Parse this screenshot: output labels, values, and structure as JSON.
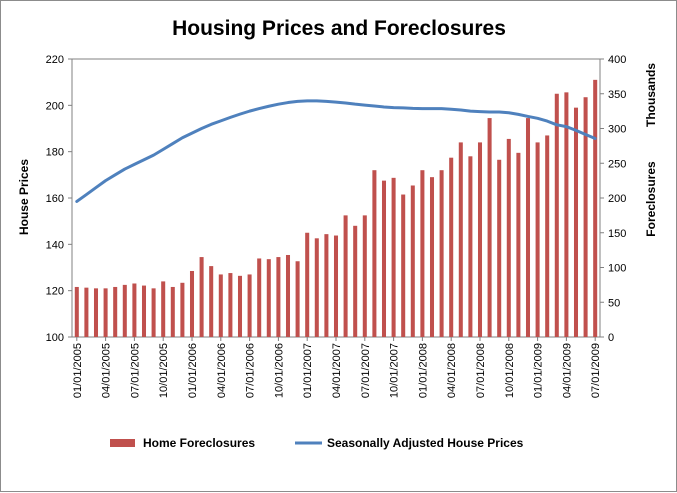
{
  "chart_data": {
    "type": "bar+line",
    "title": "Housing Prices and Foreclosures",
    "ylabel_left": "House Prices",
    "ylabel_right": "Foreclosures",
    "right_unit_label": "Thousands",
    "ylim_left": [
      100,
      220
    ],
    "ylim_right": [
      0,
      400
    ],
    "yticks_left": [
      "100",
      "120",
      "140",
      "160",
      "180",
      "200",
      "220"
    ],
    "yticks_right": [
      "0",
      "50",
      "100",
      "150",
      "200",
      "250",
      "300",
      "350",
      "400"
    ],
    "xtick_labels": [
      "01/01/2005",
      "04/01/2005",
      "07/01/2005",
      "10/01/2005",
      "01/01/2006",
      "04/01/2006",
      "07/01/2006",
      "10/01/2006",
      "01/01/2007",
      "04/01/2007",
      "07/01/2007",
      "10/01/2007",
      "01/01/2008",
      "04/01/2008",
      "07/01/2008",
      "10/01/2008",
      "01/01/2009",
      "04/01/2009",
      "07/01/2009"
    ],
    "categories": [
      "01/01/2005",
      "02/01/2005",
      "03/01/2005",
      "04/01/2005",
      "05/01/2005",
      "06/01/2005",
      "07/01/2005",
      "08/01/2005",
      "09/01/2005",
      "10/01/2005",
      "11/01/2005",
      "12/01/2005",
      "01/01/2006",
      "02/01/2006",
      "03/01/2006",
      "04/01/2006",
      "05/01/2006",
      "06/01/2006",
      "07/01/2006",
      "08/01/2006",
      "09/01/2006",
      "10/01/2006",
      "11/01/2006",
      "12/01/2006",
      "01/01/2007",
      "02/01/2007",
      "03/01/2007",
      "04/01/2007",
      "05/01/2007",
      "06/01/2007",
      "07/01/2007",
      "08/01/2007",
      "09/01/2007",
      "10/01/2007",
      "11/01/2007",
      "12/01/2007",
      "01/01/2008",
      "02/01/2008",
      "03/01/2008",
      "04/01/2008",
      "05/01/2008",
      "06/01/2008",
      "07/01/2008",
      "08/01/2008",
      "09/01/2008",
      "10/01/2008",
      "11/01/2008",
      "12/01/2008",
      "01/01/2009",
      "02/01/2009",
      "03/01/2009",
      "04/01/2009",
      "05/01/2009",
      "06/01/2009",
      "07/01/2009"
    ],
    "series": [
      {
        "name": "Home Foreclosures",
        "type": "bar",
        "axis": "right",
        "color": "#c0504d",
        "values": [
          72,
          71,
          70,
          70,
          72,
          75,
          77,
          74,
          70,
          80,
          72,
          78,
          95,
          115,
          102,
          90,
          92,
          88,
          90,
          113,
          112,
          115,
          118,
          109,
          150,
          142,
          148,
          146,
          175,
          160,
          175,
          240,
          225,
          229,
          205,
          218,
          240,
          230,
          240,
          258,
          280,
          260,
          280,
          315,
          255,
          285,
          265,
          315,
          280,
          290,
          350,
          352,
          330,
          345,
          370
        ]
      },
      {
        "name": "Seasonally Adjusted House Prices",
        "type": "line",
        "axis": "left",
        "color": "#4f81bd",
        "values": [
          158.5,
          161.5,
          164.5,
          167.5,
          170.0,
          172.5,
          174.5,
          176.5,
          178.5,
          181.0,
          183.5,
          186.0,
          188.0,
          190.0,
          191.8,
          193.3,
          194.8,
          196.2,
          197.5,
          198.6,
          199.6,
          200.5,
          201.2,
          201.7,
          201.9,
          201.9,
          201.7,
          201.4,
          201.0,
          200.5,
          200.1,
          199.7,
          199.3,
          199.0,
          198.9,
          198.7,
          198.6,
          198.6,
          198.6,
          198.3,
          198.0,
          197.5,
          197.3,
          197.1,
          197.1,
          196.8,
          196.1,
          195.2,
          194.4,
          193.2,
          191.6,
          190.8,
          189.2,
          187.4,
          185.7
        ]
      }
    ],
    "legend": "bottom",
    "grid": false
  }
}
